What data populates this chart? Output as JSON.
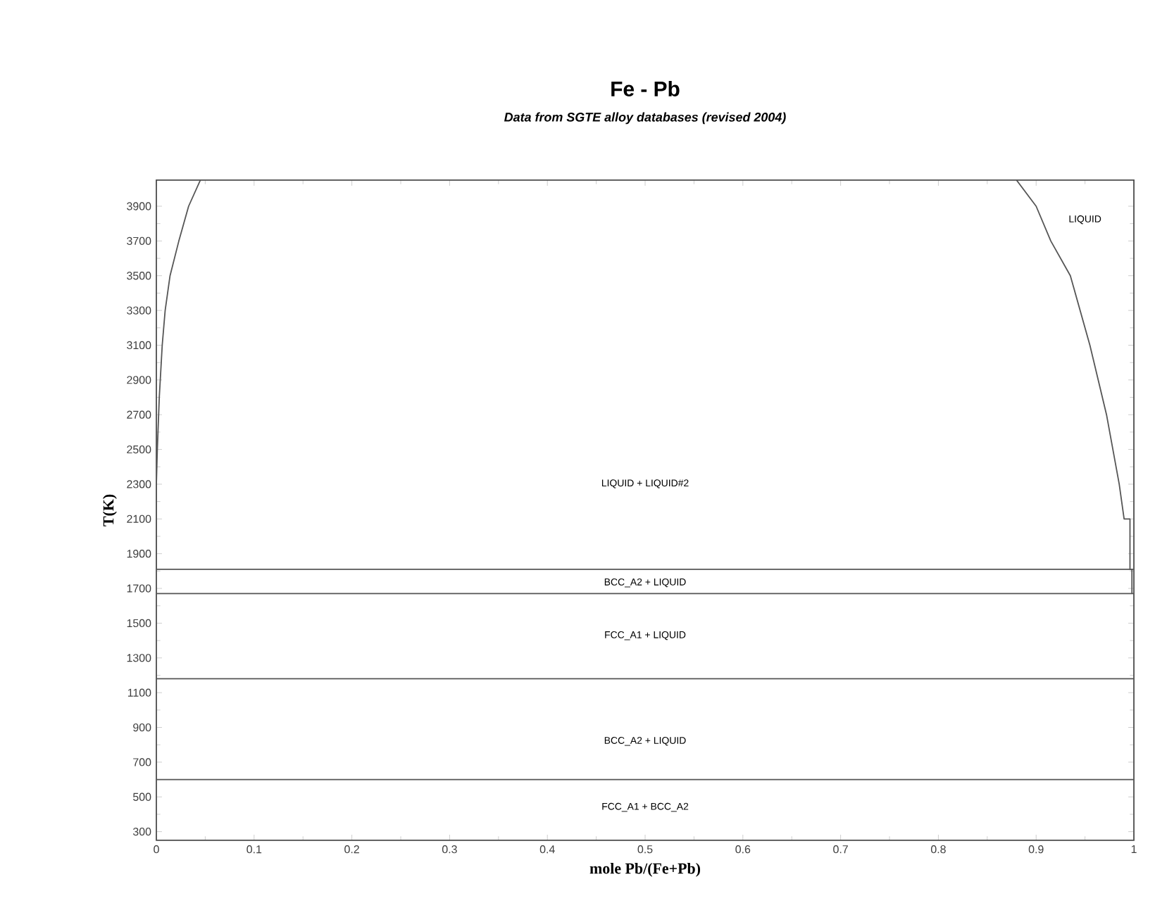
{
  "chart_data": {
    "type": "line",
    "title": "Fe - Pb",
    "subtitle": "Data from SGTE alloy databases (revised 2004)",
    "xlabel": "mole Pb/(Fe+Pb)",
    "ylabel": "T(K)",
    "xlim": [
      0,
      1
    ],
    "ylim": [
      250,
      4050
    ],
    "xticks": [
      0,
      0.1,
      0.2,
      0.3,
      0.4,
      0.5,
      0.6,
      0.7,
      0.8,
      0.9,
      1
    ],
    "yticks": [
      300,
      500,
      700,
      900,
      1100,
      1300,
      1500,
      1700,
      1900,
      2100,
      2300,
      2500,
      2700,
      2900,
      3100,
      3300,
      3500,
      3700,
      3900
    ],
    "series": [
      {
        "color": "#555555",
        "x": [
          0,
          1
        ],
        "values": [
          1810,
          1810
        ]
      },
      {
        "color": "#555555",
        "x": [
          0,
          1
        ],
        "values": [
          1670,
          1670
        ]
      },
      {
        "color": "#555555",
        "x": [
          0,
          1
        ],
        "values": [
          1180,
          1180
        ]
      },
      {
        "color": "#555555",
        "x": [
          0,
          1
        ],
        "values": [
          600,
          600
        ]
      },
      {
        "color": "#555555",
        "x": [
          0,
          0,
          0.001,
          0.003,
          0.006,
          0.009,
          0.014,
          0.023,
          0.033,
          0.045
        ],
        "values": [
          1810,
          2300,
          2500,
          2800,
          3100,
          3300,
          3500,
          3700,
          3900,
          4050
        ]
      },
      {
        "color": "#555555",
        "x": [
          0.88,
          0.9,
          0.915,
          0.935,
          0.955,
          0.972,
          0.985,
          0.99,
          0.996,
          0.996,
          0.998,
          0.998
        ],
        "values": [
          4050,
          3900,
          3700,
          3500,
          3100,
          2700,
          2300,
          2100,
          2100,
          1810,
          1810,
          1670
        ]
      }
    ],
    "annotations": [
      "LIQUID",
      "LIQUID + LIQUID#2",
      "BCC_A2 + LIQUID",
      "FCC_A1 + LIQUID",
      "BCC_A2 + LIQUID",
      "FCC_A1 + BCC_A2"
    ]
  }
}
